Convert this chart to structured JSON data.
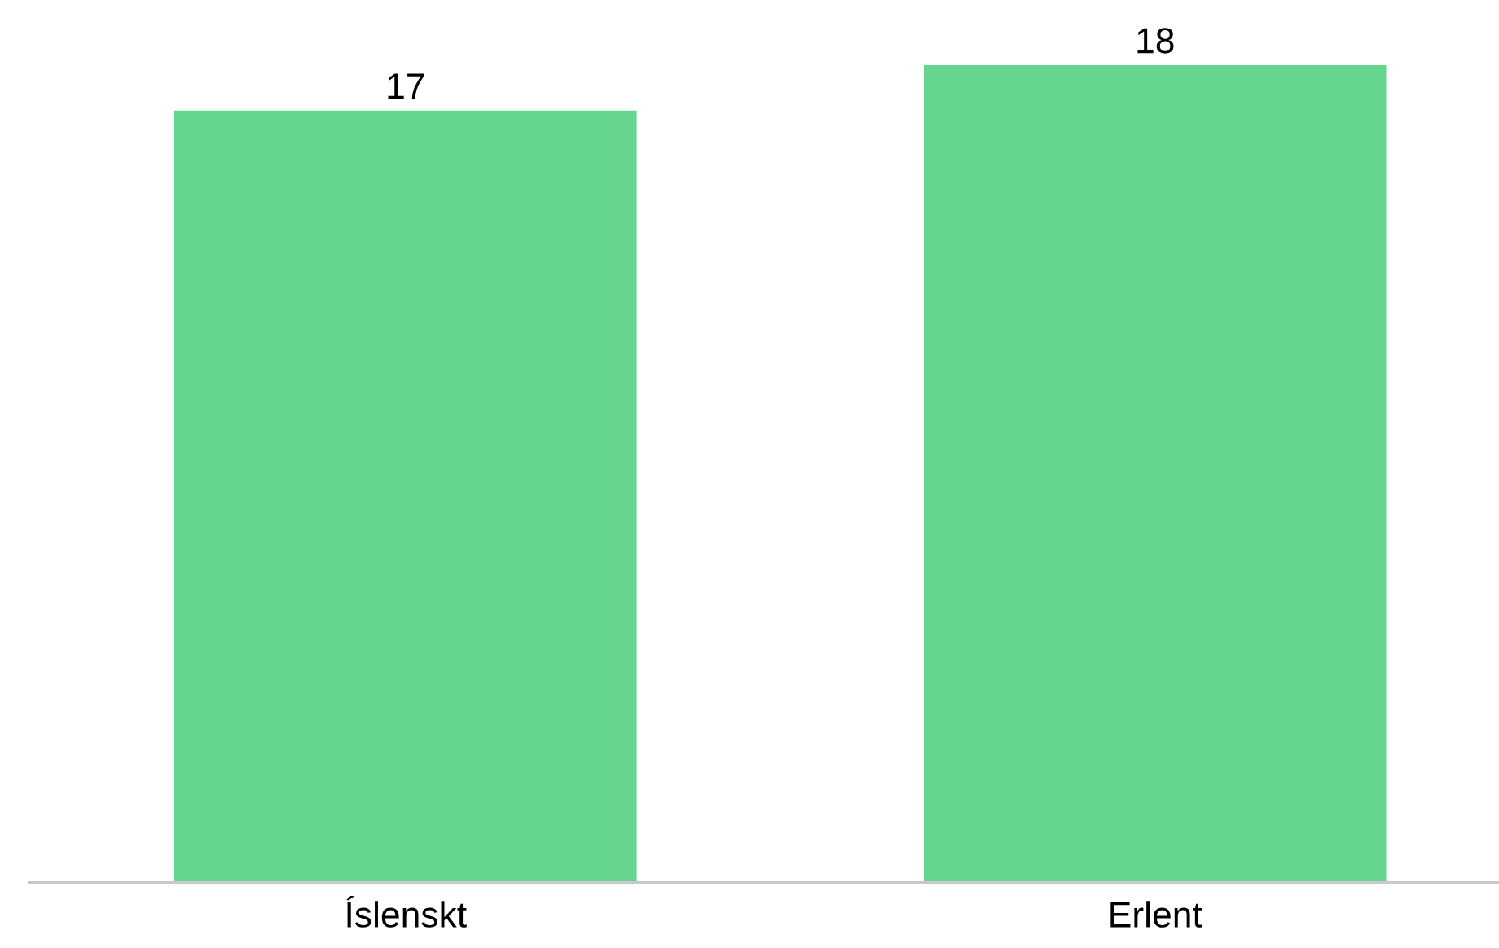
{
  "chart_data": {
    "type": "bar",
    "categories": [
      "Íslenskt",
      "Erlent"
    ],
    "values": [
      17,
      18
    ],
    "color": "#66d68f",
    "data_labels": true,
    "grid": false,
    "legend": false,
    "tick_labels": "x"
  }
}
